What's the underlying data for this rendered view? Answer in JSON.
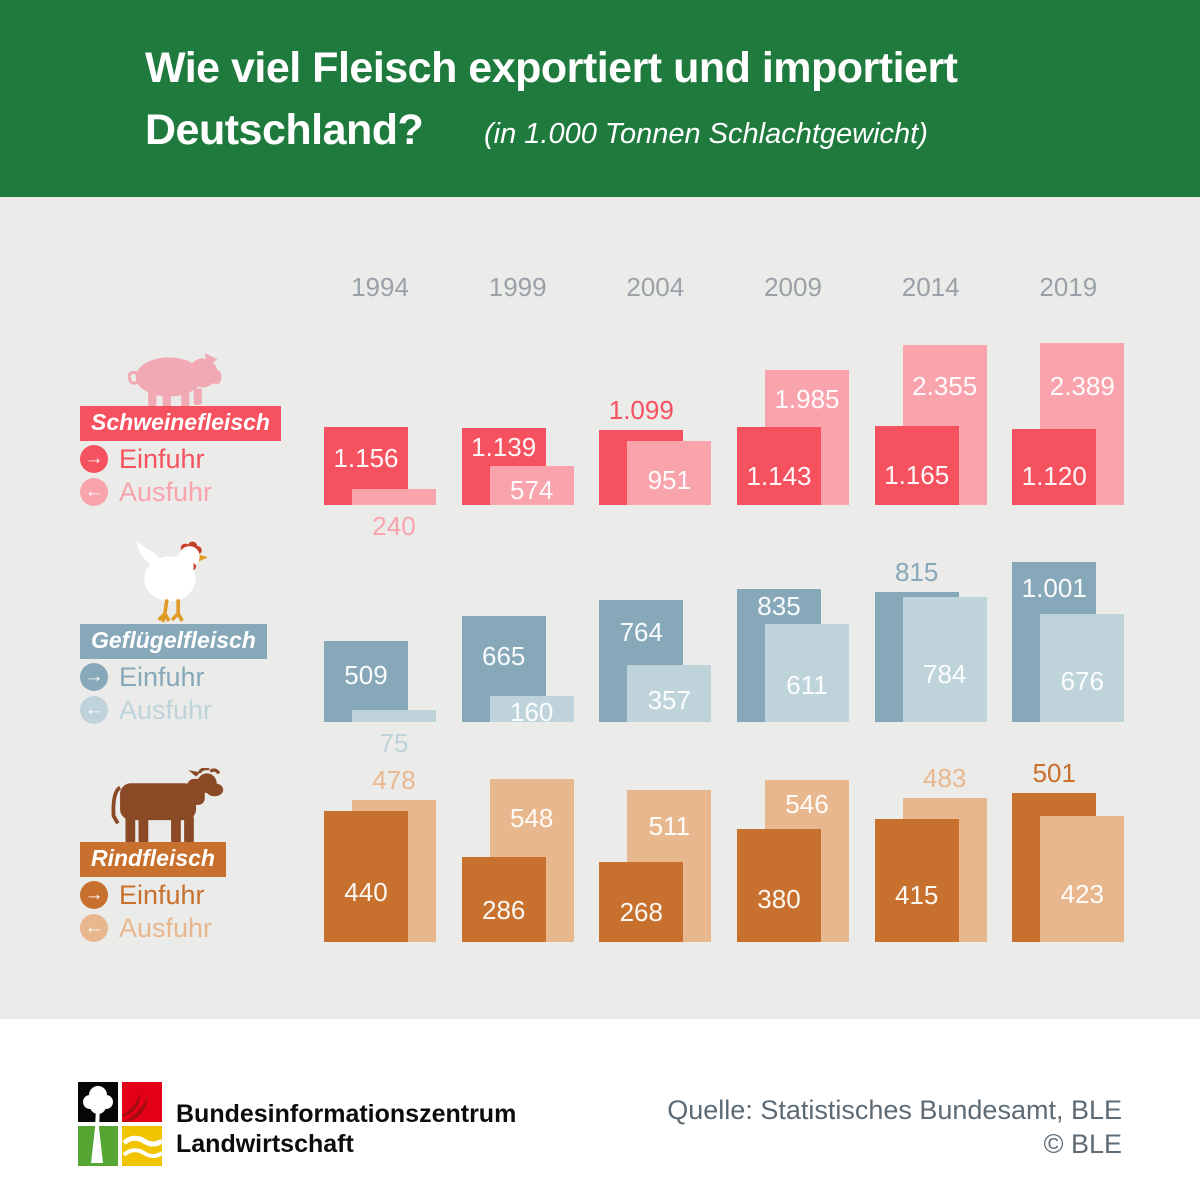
{
  "header": {
    "title_line1": "Wie viel Fleisch exportiert und importiert",
    "title_line2": "Deutschland?",
    "subtitle": "(in 1.000 Tonnen Schlachtgewicht)"
  },
  "chart_data": {
    "type": "bar",
    "title": "Wie viel Fleisch exportiert und importiert Deutschland?",
    "unit_note": "in 1.000 Tonnen Schlachtgewicht",
    "categories": [
      "1994",
      "1999",
      "2004",
      "2009",
      "2014",
      "2019"
    ],
    "legend_labels": {
      "einfuhr": "Einfuhr",
      "ausfuhr": "Ausfuhr"
    },
    "legend_position": "left",
    "value_label_format": "thousands-dot",
    "background": "#ebebe9",
    "header_green": "#1f7a3d",
    "groups": [
      {
        "label": "Schweinefleisch",
        "icon": "pig-icon",
        "colors": {
          "einfuhr": "#f6515f",
          "ausfuhr": "#f9a3ad"
        },
        "series": [
          {
            "name": "Einfuhr",
            "values": [
              1156,
              1139,
              1099,
              1143,
              1165,
              1120
            ]
          },
          {
            "name": "Ausfuhr",
            "values": [
              240,
              574,
              951,
              1985,
              2355,
              2389
            ]
          }
        ]
      },
      {
        "label": "Geflügelfleisch",
        "icon": "chicken-icon",
        "colors": {
          "einfuhr": "#87a8b9",
          "ausfuhr": "#bfd3da"
        },
        "series": [
          {
            "name": "Einfuhr",
            "values": [
              509,
              665,
              764,
              835,
              815,
              1001
            ]
          },
          {
            "name": "Ausfuhr",
            "values": [
              75,
              160,
              357,
              611,
              784,
              676
            ]
          }
        ]
      },
      {
        "label": "Rindfleisch",
        "icon": "cow-icon",
        "colors": {
          "einfuhr": "#c8702d",
          "ausfuhr": "#e9b78e"
        },
        "series": [
          {
            "name": "Einfuhr",
            "values": [
              440,
              286,
              268,
              380,
              415,
              501
            ]
          },
          {
            "name": "Ausfuhr",
            "values": [
              478,
              548,
              511,
              546,
              483,
              423
            ]
          }
        ]
      }
    ]
  },
  "footer": {
    "org_line1": "Bundesinformationszentrum",
    "org_line2": "Landwirtschaft",
    "source": "Quelle: Statistisches Bundesamt, BLE",
    "copyright": "© BLE"
  }
}
